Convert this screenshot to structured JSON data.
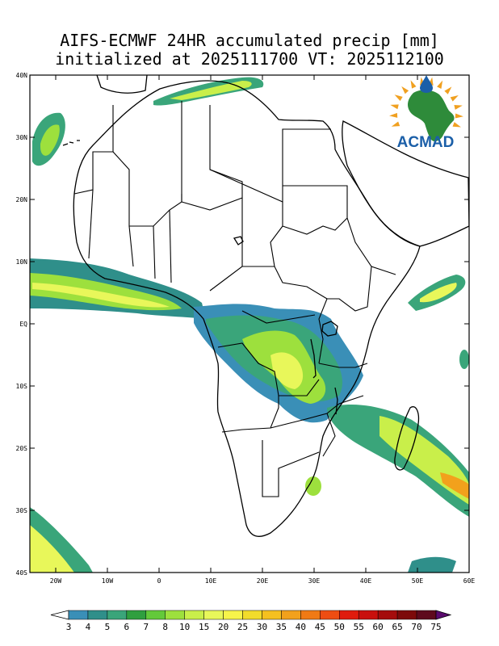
{
  "title": {
    "line1": "AIFS-ECMWF 24HR accumulated precip [mm]",
    "line2": "initialized at 2025111700 VT: 2025112100"
  },
  "logo": {
    "text": "ACMAD",
    "colors": {
      "africa": "#2e8b3a",
      "rays": "#f0a020",
      "text": "#1b5fa8",
      "drop": "#1b5fa8"
    }
  },
  "map": {
    "lon_range": [
      -25,
      60
    ],
    "lat_range": [
      -40,
      40
    ],
    "lat_ticks": [
      "40N",
      "30N",
      "20N",
      "10N",
      "EQ",
      "10S",
      "20S",
      "30S",
      "40S"
    ],
    "lon_ticks": [
      "20W",
      "10W",
      "0",
      "10E",
      "20E",
      "30E",
      "40E",
      "50E",
      "60E"
    ]
  },
  "colorbar": {
    "labels": [
      "3",
      "4",
      "5",
      "6",
      "7",
      "8",
      "10",
      "15",
      "20",
      "25",
      "30",
      "35",
      "40",
      "45",
      "50",
      "55",
      "60",
      "65",
      "70",
      "75"
    ],
    "colors": [
      "#3a8fb7",
      "#2f8f8a",
      "#3aa57a",
      "#2f9f3f",
      "#63c93a",
      "#9de03d",
      "#c9ef4a",
      "#e8f75a",
      "#f7f44a",
      "#f2dc2b",
      "#f5c020",
      "#f2a11c",
      "#f07a15",
      "#ee4d12",
      "#e01b0d",
      "#c9100d",
      "#a50c0c",
      "#7d0a0a",
      "#5e0a1d"
    ],
    "under_color": "#ffffff",
    "over_color": "#5a0a6e"
  }
}
